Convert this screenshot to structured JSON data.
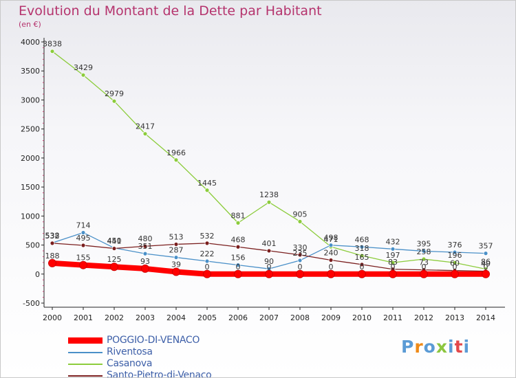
{
  "title": "Evolution du Montant de la Dette par Habitant",
  "subtitle": "(en €)",
  "logo": {
    "text": "Proxiti",
    "letter_colors": [
      "#5b9bd5",
      "#ef8a17",
      "#5b9bd5",
      "#8cc63f",
      "#5b9bd5",
      "#e3484a",
      "#5b9bd5"
    ]
  },
  "chart_data": {
    "type": "line",
    "title": "Evolution du Montant de la Dette par Habitant",
    "ylabel": "(en €)",
    "xlabel": "",
    "x": [
      "2000",
      "2001",
      "2002",
      "2003",
      "2004",
      "2005",
      "2006",
      "2007",
      "2008",
      "2009",
      "2010",
      "2011",
      "2012",
      "2013",
      "2014"
    ],
    "ylim": [
      -500,
      4000
    ],
    "yticks": [
      -500,
      0,
      500,
      1000,
      1500,
      2000,
      2500,
      3000,
      3500,
      4000
    ],
    "grid": false,
    "legend_position": "bottom-left",
    "series": [
      {
        "name": "POGGIO-DI-VENACO",
        "color": "#ff0000",
        "values": [
          188,
          155,
          125,
          93,
          39,
          0,
          0,
          0,
          0,
          0,
          0,
          0,
          0,
          0,
          0
        ],
        "labels": [
          "188",
          "155",
          "125",
          "93",
          "39",
          "0",
          "0",
          "0",
          "0",
          "0",
          "0",
          "0",
          "0",
          "0",
          "0"
        ]
      },
      {
        "name": "Riventosa",
        "color": "#4a90c8",
        "values": [
          538,
          714,
          450,
          351,
          287,
          222,
          156,
          90,
          235,
          498,
          468,
          432,
          395,
          376,
          357
        ],
        "labels": [
          "538",
          "714",
          "450",
          "351",
          "287",
          "222",
          "156",
          "90",
          "235",
          "498",
          "468",
          "432",
          "395",
          "376",
          "357"
        ]
      },
      {
        "name": "Casanova",
        "color": "#8ccc3c",
        "values": [
          3838,
          3429,
          2979,
          2417,
          1966,
          1445,
          881,
          1238,
          905,
          471,
          318,
          197,
          258,
          196,
          86
        ],
        "labels": [
          "3838",
          "3429",
          "2979",
          "2417",
          "1966",
          "1445",
          "881",
          "1238",
          "905",
          "471",
          "318",
          "197",
          "258",
          "196",
          "86"
        ]
      },
      {
        "name": "Santo-Pietro-di-Venaco",
        "color": "#7a1e1e",
        "values": [
          532,
          495,
          441,
          480,
          513,
          532,
          468,
          401,
          330,
          240,
          165,
          83,
          73,
          60,
          49
        ],
        "labels": [
          "532",
          "495",
          "441",
          "480",
          "513",
          "532",
          "468",
          "401",
          "330",
          "240",
          "165",
          "83",
          "73",
          "60",
          "49"
        ]
      }
    ]
  }
}
